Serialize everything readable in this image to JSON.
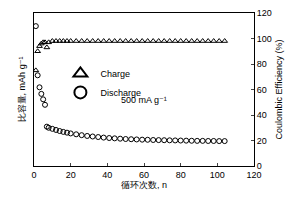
{
  "chart_data": {
    "type": "scatter",
    "xlabel": "循环次数, n",
    "ylabel": "比容量, mAh g⁻¹",
    "y2label": "Coulombic Efficiency (%)",
    "xlim": [
      0,
      120
    ],
    "xticks": [
      0,
      20,
      40,
      60,
      80,
      100,
      120
    ],
    "ylim": [
      0,
      1400
    ],
    "yticks": [],
    "y2lim": [
      0,
      120
    ],
    "y2ticks": [
      0,
      20,
      40,
      60,
      80,
      100,
      120
    ],
    "legend": "upper left",
    "annotations": [
      {
        "text": "500 mA g⁻¹",
        "x": 60,
        "y": 600
      }
    ],
    "series": [
      {
        "name": "Charge",
        "axis": "y2",
        "marker": "triangle-open",
        "color": "#000000",
        "x": [
          1,
          2,
          3,
          4,
          5,
          6,
          7,
          8,
          10,
          12,
          14,
          16,
          18,
          20,
          23,
          26,
          29,
          32,
          35,
          38,
          41,
          44,
          47,
          50,
          53,
          56,
          59,
          62,
          65,
          68,
          71,
          74,
          77,
          80,
          83,
          86,
          89,
          92,
          95,
          98,
          101,
          104
        ],
        "values": [
          75,
          90,
          94,
          96,
          97,
          97,
          93,
          97,
          98,
          98,
          98,
          98,
          98,
          98,
          98,
          98,
          98,
          98,
          98,
          98,
          98,
          98,
          98,
          98,
          98,
          98,
          98,
          98,
          98,
          98,
          98,
          98,
          98,
          98,
          98,
          98,
          98,
          98,
          98,
          98,
          98,
          98
        ]
      },
      {
        "name": "Discharge",
        "axis": "y",
        "marker": "circle-open",
        "color": "#000000",
        "x": [
          1,
          2,
          3,
          4,
          5,
          6,
          7,
          8,
          10,
          12,
          14,
          16,
          18,
          20,
          23,
          26,
          29,
          32,
          35,
          38,
          41,
          44,
          47,
          50,
          53,
          56,
          59,
          62,
          65,
          68,
          71,
          74,
          77,
          80,
          83,
          86,
          89,
          92,
          95,
          98,
          101,
          104
        ],
        "values": [
          1280,
          830,
          720,
          660,
          610,
          560,
          360,
          350,
          340,
          330,
          320,
          312,
          305,
          298,
          290,
          282,
          275,
          270,
          265,
          260,
          256,
          253,
          250,
          247,
          245,
          243,
          241,
          240,
          238,
          237,
          236,
          235,
          234,
          233,
          232,
          231,
          230,
          230,
          229,
          229,
          228,
          228
        ]
      }
    ]
  }
}
